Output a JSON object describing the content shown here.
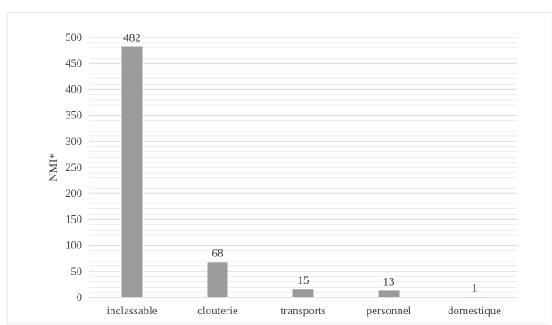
{
  "chart_data": {
    "type": "bar",
    "categories": [
      "inclassable",
      "clouterie",
      "transports",
      "personnel",
      "domestique"
    ],
    "values": [
      482,
      68,
      15,
      13,
      1
    ],
    "data_labels": [
      "482",
      "68",
      "15",
      "13",
      "1"
    ],
    "title": "",
    "xlabel": "",
    "ylabel": "NMI*",
    "ylim": [
      0,
      500
    ],
    "yticks": [
      0,
      50,
      100,
      150,
      200,
      250,
      300,
      350,
      400,
      450,
      500
    ],
    "ytick_labels": [
      "0",
      "50",
      "100",
      "150",
      "200",
      "250",
      "300",
      "350",
      "400",
      "450",
      "500"
    ],
    "grid": true,
    "minor_grid_step": 10,
    "legend": "none",
    "colors": {
      "bar": "#9a9b9d",
      "grid": "#d9d9d9",
      "axis": "#bfbfbf"
    }
  }
}
